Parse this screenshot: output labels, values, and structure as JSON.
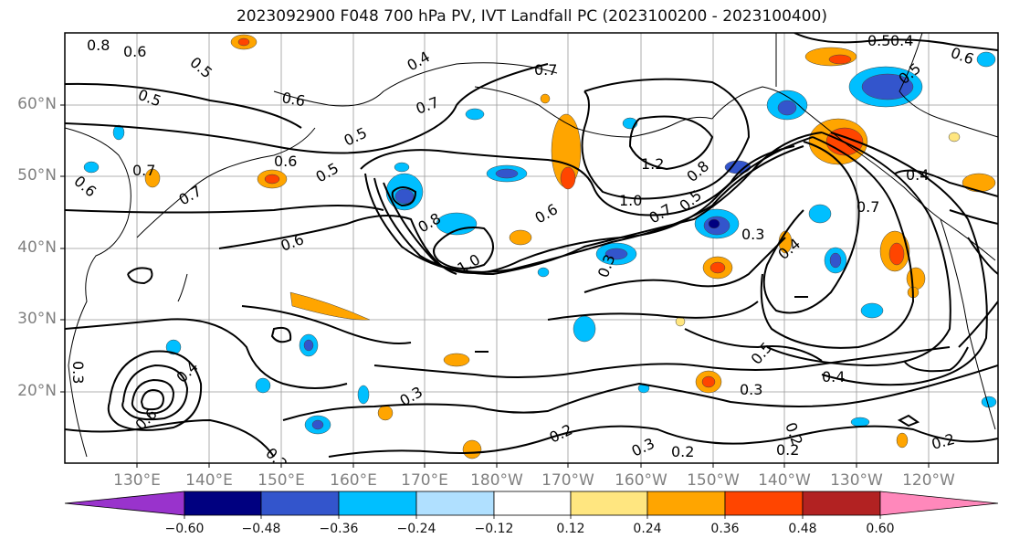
{
  "title": "2023092900 F048 700 hPa PV, IVT Landfall PC (2023100200 - 2023100400)",
  "map": {
    "lat_labels": [
      "60°N",
      "50°N",
      "40°N",
      "30°N",
      "20°N"
    ],
    "lon_labels": [
      "130°E",
      "140°E",
      "150°E",
      "160°E",
      "170°E",
      "180°W",
      "170°W",
      "160°W",
      "150°W",
      "140°W",
      "130°W",
      "120°W"
    ],
    "contour_labels": [
      "0.8",
      "0.6",
      "0.5",
      "0.4",
      "0.7",
      "0.5",
      "0.6",
      "0.5",
      "0.6",
      "0.7",
      "0.6",
      "0.5",
      "0.7",
      "0.8",
      "0.6",
      "1.2",
      "1.0",
      "0.7",
      "0.8",
      "0.5",
      "0.3",
      "0.4",
      "0.7",
      "0.4",
      "0.6",
      "1.0",
      "0.3",
      "0.3",
      "0.4",
      "0.6",
      "0.3",
      "0.2",
      "0.2",
      "0.3",
      "0.2",
      "0.5",
      "0.4",
      "0.3",
      "0.2",
      "0.2",
      "0.2",
      "0.5",
      "0.4",
      "0.6",
      "0.5",
      "0.7"
    ]
  },
  "colorbar": {
    "ticks": [
      "−0.60",
      "−0.48",
      "−0.36",
      "−0.24",
      "−0.12",
      "0.12",
      "0.24",
      "0.36",
      "0.48",
      "0.60"
    ],
    "colors": [
      "#9933cc",
      "#000080",
      "#3355cc",
      "#00bfff",
      "#b0e0ff",
      "#ffffff",
      "#ffe680",
      "#ffa500",
      "#ff4500",
      "#b22222",
      "#ff88bb"
    ]
  }
}
